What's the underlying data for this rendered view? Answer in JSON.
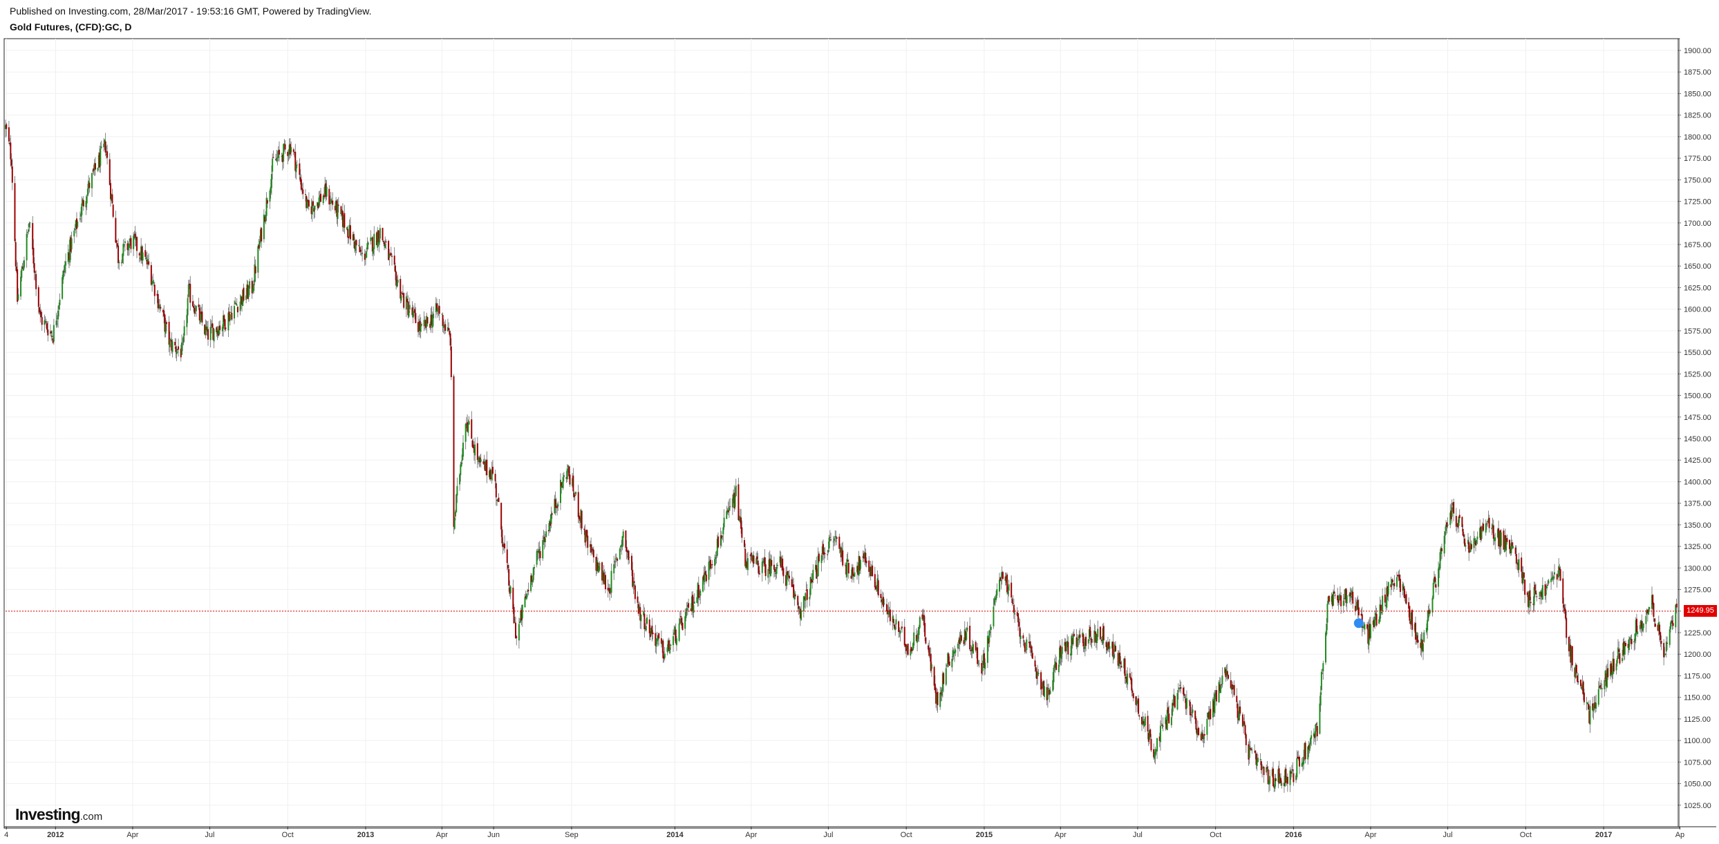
{
  "header": {
    "published": "Published on Investing.com, 28/Mar/2017 - 19:53:16 GMT, Powered by TradingView.",
    "symbol": "Gold Futures, (CFD):GC, D"
  },
  "logo": {
    "brand": "Investing",
    "suffix": ".com"
  },
  "current_price": {
    "label": "1249.95",
    "value": 1249.95,
    "color": "#e00000"
  },
  "colors": {
    "up": "#1e8c1e",
    "down": "#9b0000",
    "grid": "#f0f0f0",
    "price_line": "#e00000"
  },
  "chart_data": {
    "type": "candlestick",
    "title": "Gold Futures, (CFD):GC, D",
    "grid": true,
    "ylim": [
      1000,
      1912
    ],
    "x_range": [
      "2011-11-03",
      "2017-03-30"
    ],
    "y_ticks": [
      "1025.00",
      "1050.00",
      "1075.00",
      "1100.00",
      "1125.00",
      "1150.00",
      "1175.00",
      "1200.00",
      "1225.00",
      "1250.00",
      "1275.00",
      "1300.00",
      "1325.00",
      "1350.00",
      "1375.00",
      "1400.00",
      "1425.00",
      "1450.00",
      "1475.00",
      "1500.00",
      "1525.00",
      "1550.00",
      "1575.00",
      "1600.00",
      "1625.00",
      "1650.00",
      "1675.00",
      "1700.00",
      "1725.00",
      "1750.00",
      "1775.00",
      "1800.00",
      "1825.00",
      "1850.00",
      "1875.00",
      "1900.00"
    ],
    "x_ticks": [
      {
        "label": "4",
        "date": "2011-11-04",
        "bold": false
      },
      {
        "label": "2012",
        "date": "2012-01-01",
        "bold": true
      },
      {
        "label": "Apr",
        "date": "2012-04-01",
        "bold": false
      },
      {
        "label": "Jul",
        "date": "2012-07-01",
        "bold": false
      },
      {
        "label": "Oct",
        "date": "2012-10-01",
        "bold": false
      },
      {
        "label": "2013",
        "date": "2013-01-01",
        "bold": true
      },
      {
        "label": "Apr",
        "date": "2013-04-01",
        "bold": false
      },
      {
        "label": "Jun",
        "date": "2013-06-01",
        "bold": false
      },
      {
        "label": "Sep",
        "date": "2013-09-01",
        "bold": false
      },
      {
        "label": "2014",
        "date": "2014-01-01",
        "bold": true
      },
      {
        "label": "Apr",
        "date": "2014-04-01",
        "bold": false
      },
      {
        "label": "Jul",
        "date": "2014-07-01",
        "bold": false
      },
      {
        "label": "Oct",
        "date": "2014-10-01",
        "bold": false
      },
      {
        "label": "2015",
        "date": "2015-01-01",
        "bold": true
      },
      {
        "label": "Apr",
        "date": "2015-04-01",
        "bold": false
      },
      {
        "label": "Jul",
        "date": "2015-07-01",
        "bold": false
      },
      {
        "label": "Oct",
        "date": "2015-10-01",
        "bold": false
      },
      {
        "label": "2016",
        "date": "2016-01-01",
        "bold": true
      },
      {
        "label": "Apr",
        "date": "2016-04-01",
        "bold": false
      },
      {
        "label": "Jul",
        "date": "2016-07-01",
        "bold": false
      },
      {
        "label": "Oct",
        "date": "2016-10-01",
        "bold": false
      },
      {
        "label": "2017",
        "date": "2017-01-01",
        "bold": true
      },
      {
        "label": "Ap",
        "date": "2017-04-01",
        "bold": false
      }
    ],
    "price_path": [
      [
        "2011-11-03",
        1810
      ],
      [
        "2011-11-10",
        1775
      ],
      [
        "2011-11-17",
        1610
      ],
      [
        "2011-12-01",
        1700
      ],
      [
        "2011-12-14",
        1590
      ],
      [
        "2011-12-29",
        1570
      ],
      [
        "2012-01-12",
        1650
      ],
      [
        "2012-02-06",
        1735
      ],
      [
        "2012-02-29",
        1790
      ],
      [
        "2012-03-15",
        1660
      ],
      [
        "2012-04-01",
        1680
      ],
      [
        "2012-04-20",
        1650
      ],
      [
        "2012-05-15",
        1560
      ],
      [
        "2012-05-30",
        1550
      ],
      [
        "2012-06-06",
        1620
      ],
      [
        "2012-06-28",
        1570
      ],
      [
        "2012-07-18",
        1585
      ],
      [
        "2012-08-01",
        1605
      ],
      [
        "2012-08-20",
        1625
      ],
      [
        "2012-09-14",
        1770
      ],
      [
        "2012-10-05",
        1790
      ],
      [
        "2012-10-25",
        1715
      ],
      [
        "2012-11-15",
        1735
      ],
      [
        "2012-12-07",
        1700
      ],
      [
        "2012-12-28",
        1660
      ],
      [
        "2013-01-18",
        1690
      ],
      [
        "2013-02-15",
        1610
      ],
      [
        "2013-03-08",
        1575
      ],
      [
        "2013-03-28",
        1600
      ],
      [
        "2013-04-11",
        1565
      ],
      [
        "2013-04-15",
        1350
      ],
      [
        "2013-04-29",
        1475
      ],
      [
        "2013-05-15",
        1420
      ],
      [
        "2013-06-01",
        1410
      ],
      [
        "2013-06-20",
        1275
      ],
      [
        "2013-06-28",
        1220
      ],
      [
        "2013-07-15",
        1290
      ],
      [
        "2013-08-27",
        1415
      ],
      [
        "2013-09-10",
        1365
      ],
      [
        "2013-09-20",
        1325
      ],
      [
        "2013-10-15",
        1275
      ],
      [
        "2013-11-01",
        1340
      ],
      [
        "2013-11-20",
        1250
      ],
      [
        "2013-12-20",
        1200
      ],
      [
        "2014-01-15",
        1245
      ],
      [
        "2014-02-10",
        1300
      ],
      [
        "2014-03-14",
        1385
      ],
      [
        "2014-03-25",
        1310
      ],
      [
        "2014-04-15",
        1300
      ],
      [
        "2014-05-05",
        1305
      ],
      [
        "2014-05-30",
        1250
      ],
      [
        "2014-06-25",
        1320
      ],
      [
        "2014-07-10",
        1335
      ],
      [
        "2014-07-25",
        1295
      ],
      [
        "2014-08-15",
        1310
      ],
      [
        "2014-09-10",
        1245
      ],
      [
        "2014-10-06",
        1205
      ],
      [
        "2014-10-20",
        1245
      ],
      [
        "2014-11-06",
        1145
      ],
      [
        "2014-11-20",
        1195
      ],
      [
        "2014-12-10",
        1225
      ],
      [
        "2014-12-30",
        1185
      ],
      [
        "2015-01-22",
        1300
      ],
      [
        "2015-02-09",
        1235
      ],
      [
        "2015-03-17",
        1150
      ],
      [
        "2015-04-01",
        1205
      ],
      [
        "2015-05-18",
        1225
      ],
      [
        "2015-06-15",
        1185
      ],
      [
        "2015-07-20",
        1090
      ],
      [
        "2015-08-20",
        1160
      ],
      [
        "2015-09-15",
        1105
      ],
      [
        "2015-10-14",
        1185
      ],
      [
        "2015-11-10",
        1085
      ],
      [
        "2015-12-03",
        1055
      ],
      [
        "2015-12-31",
        1060
      ],
      [
        "2016-01-29",
        1115
      ],
      [
        "2016-02-11",
        1260
      ],
      [
        "2016-03-10",
        1270
      ],
      [
        "2016-03-28",
        1220
      ],
      [
        "2016-05-02",
        1295
      ],
      [
        "2016-05-30",
        1205
      ],
      [
        "2016-06-24",
        1320
      ],
      [
        "2016-07-06",
        1370
      ],
      [
        "2016-07-26",
        1320
      ],
      [
        "2016-08-15",
        1350
      ],
      [
        "2016-09-20",
        1315
      ],
      [
        "2016-10-04",
        1265
      ],
      [
        "2016-10-25",
        1275
      ],
      [
        "2016-11-09",
        1300
      ],
      [
        "2016-11-20",
        1210
      ],
      [
        "2016-12-15",
        1130
      ],
      [
        "2017-01-10",
        1185
      ],
      [
        "2017-02-27",
        1258
      ],
      [
        "2017-03-14",
        1200
      ],
      [
        "2017-03-28",
        1252
      ]
    ]
  }
}
